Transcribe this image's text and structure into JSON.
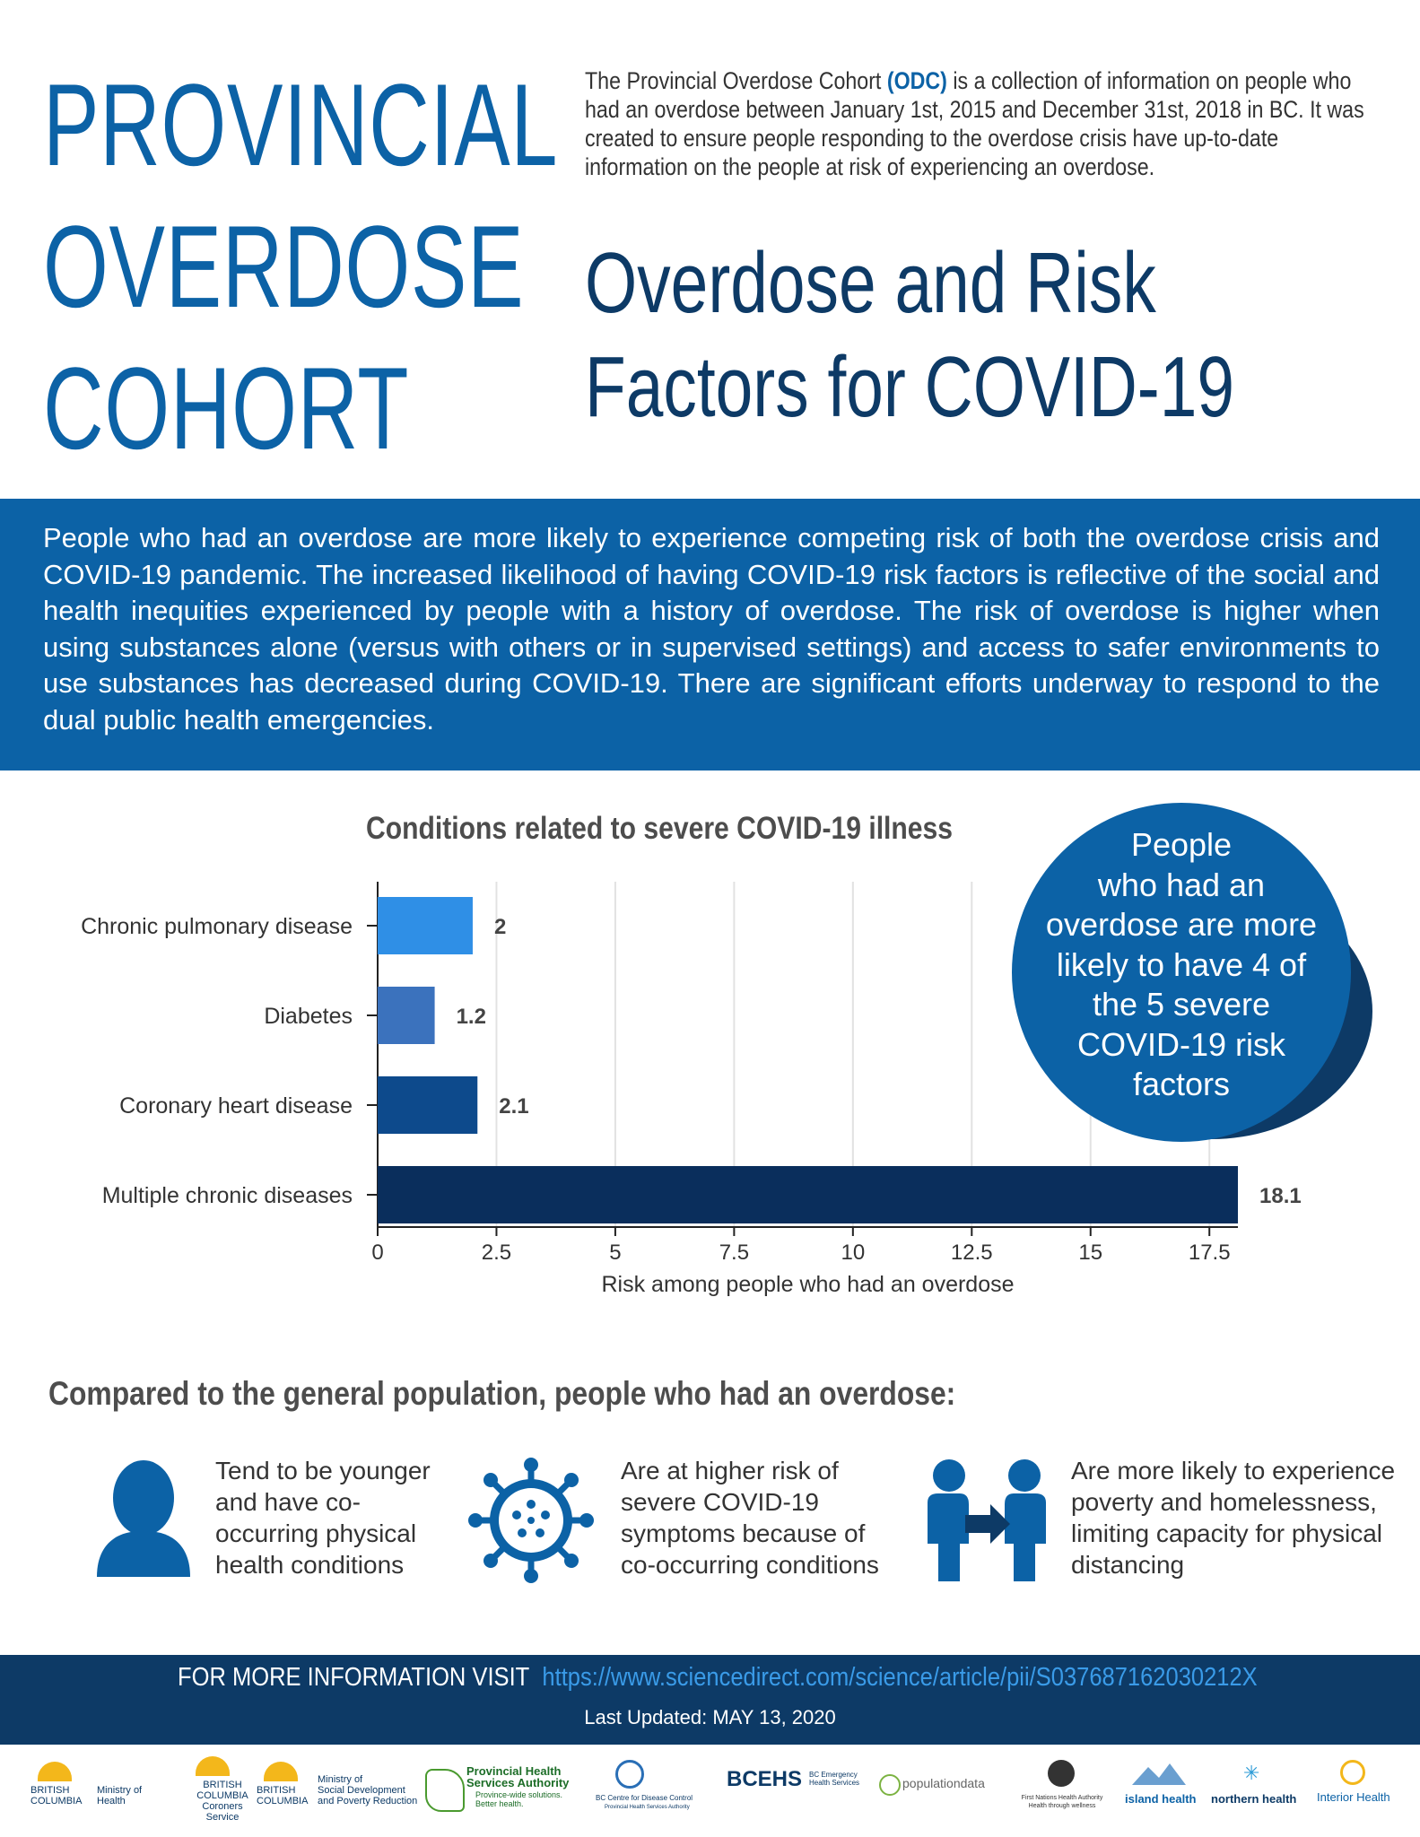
{
  "header": {
    "title_lines": [
      "PROVINCIAL",
      "OVERDOSE",
      "COHORT"
    ],
    "intro_before": "The Provincial Overdose Cohort ",
    "intro_acronym": "(ODC)",
    "intro_after": " is a collection of information on people who had an overdose between January 1st, 2015 and December 31st, 2018 in BC. It was created to ensure people responding to the overdose crisis have up-to-date information on the people at risk of experiencing an overdose.",
    "subtitle_lines": [
      "Overdose and Risk",
      "Factors for COVID-19"
    ]
  },
  "banner": {
    "text": "People who had an overdose are more likely to experience competing risk of both the overdose crisis and COVID-19 pandemic. The increased likelihood of having COVID-19 risk factors is reflective of the social and health inequities experienced by people with a history of overdose. The risk of overdose is higher when using substances alone (versus with others or in supervised settings) and access to safer environments to use substances has decreased during COVID-19. There are significant efforts underway to respond to the dual public health emergencies."
  },
  "chart_data": {
    "type": "bar",
    "orientation": "horizontal",
    "title": "Conditions related to severe COVID-19 illness",
    "categories": [
      "Chronic pulmonary disease",
      "Diabetes",
      "Coronary heart disease",
      "Multiple chronic diseases"
    ],
    "values": [
      2,
      1.2,
      2.1,
      18.1
    ],
    "value_labels": [
      "2",
      "1.2",
      "2.1",
      "18.1"
    ],
    "colors": [
      "#2f8fe6",
      "#3b72bd",
      "#0d4a8c",
      "#0a2e5c"
    ],
    "xlabel": "Risk among people who had an overdose",
    "ylabel": "",
    "xlim": [
      0,
      18.1
    ],
    "xticks": [
      "0",
      "2.5",
      "5",
      "7.5",
      "10",
      "12.5",
      "15",
      "17.5"
    ],
    "grid": "vertical"
  },
  "callout": {
    "lines": [
      "People",
      "who had an",
      "overdose are more",
      "likely to have 4 of",
      "the 5 severe",
      "COVID-19 risk",
      "factors"
    ]
  },
  "compare": {
    "heading": "Compared to the general population, people who had an overdose:",
    "items": [
      {
        "icon": "person-icon",
        "lines": [
          "Tend to be younger",
          "and have co-",
          "occurring physical",
          "health conditions"
        ]
      },
      {
        "icon": "virus-icon",
        "lines": [
          "Are at higher risk of",
          "severe COVID-19",
          "symptoms because of",
          "co-occurring conditions"
        ]
      },
      {
        "icon": "people-distancing-icon",
        "lines": [
          "Are more likely to experience",
          "poverty and homelessness,",
          "limiting capacity for physical",
          "distancing"
        ]
      }
    ]
  },
  "footer": {
    "more_info_label": "FOR MORE INFORMATION VISIT",
    "link": "https://www.sciencedirect.com/science/article/pii/S037687162030212X",
    "updated": "Last Updated: MAY 13, 2020",
    "colors": {
      "primary": "#0c62a6",
      "dark": "#0d3a66",
      "link": "#3a9be8"
    }
  },
  "logos": {
    "bc_health": [
      "BRITISH",
      "COLUMBIA",
      "Ministry of",
      "Health"
    ],
    "bc_coroners": [
      "BRITISH",
      "COLUMBIA",
      "Coroners Service"
    ],
    "bc_sdpr": [
      "BRITISH",
      "COLUMBIA",
      "Ministry of",
      "Social Development",
      "and Poverty Reduction"
    ],
    "phsa": [
      "Provincial Health",
      "Services Authority",
      "Province-wide solutions.",
      "Better health."
    ],
    "bccdc": [
      "BC Centre for Disease Control",
      "Provincial Health Services Authority"
    ],
    "bcehs": [
      "BCEHS",
      "BC Emergency",
      "Health Services"
    ],
    "popdata": "populationdata",
    "fnha": [
      "First Nations Health Authority",
      "Health through wellness"
    ],
    "island": "island health",
    "northern": "northern health",
    "interior": "Interior Health"
  }
}
